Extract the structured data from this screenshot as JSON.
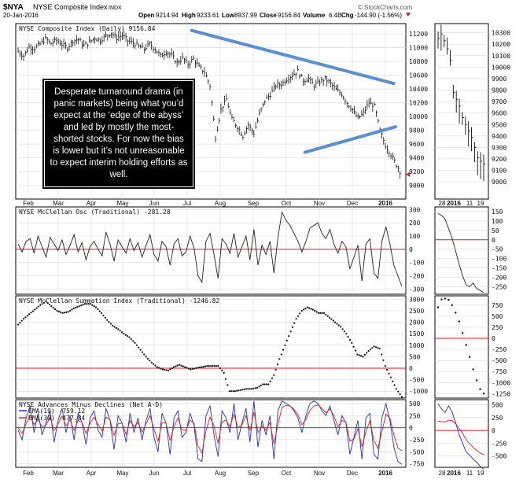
{
  "header": {
    "symbol": "$NYA",
    "name": "NYSE Composite Index",
    "exchange": "INDX",
    "date": "20-Jan-2016",
    "open_label": "Open",
    "open": "9214.94",
    "high_label": "High",
    "high": "9233.61",
    "low_label": "Low",
    "low": "8937.99",
    "close_label": "Close",
    "close": "9156.84",
    "volume_label": "Volume",
    "volume": "6.4B",
    "chg_label": "Chg",
    "chg": "-144.90 (-1.56%)",
    "watermark": "© StockCharts.com"
  },
  "annotation": "Desperate turnaround drama (in panic markets) being what you’d expect at the ‘edge of the abyss’ and led by mostly the most-shorted stocks. For now the bias is lower but it’s not unreasonable to expect interim holding efforts as well.",
  "colors": {
    "price": "#111111",
    "trendline": "#5b8fd1",
    "zero_line": "#d0202a",
    "ad_line": "#2a2fb8",
    "ema39": "#e0201a",
    "grid": "#d9d9d9"
  },
  "chart_data": [
    {
      "type": "bar",
      "panel": "price",
      "title": "NYSE Composite Index (Daily) 9156.84",
      "x_labels": [
        "Feb",
        "Mar",
        "Apr",
        "May",
        "Jun",
        "Jul",
        "Aug",
        "Sep",
        "Oct",
        "Nov",
        "Dec",
        "2016"
      ],
      "ylim": [
        8800,
        11350
      ],
      "y_ticks": [
        9000,
        9200,
        9400,
        9600,
        9800,
        10000,
        10200,
        10400,
        10600,
        10800,
        11000,
        11200
      ],
      "zoom_x_labels": [
        "28",
        "2016",
        "11",
        "19"
      ],
      "zoom_ylim": [
        8850,
        10380
      ],
      "zoom_y_ticks": [
        9000,
        9100,
        9200,
        9300,
        9400,
        9500,
        9600,
        9700,
        9800,
        9900,
        10000,
        10100,
        10200,
        10300
      ],
      "last": 9156.84,
      "points": [
        [
          0,
          10950
        ],
        [
          6,
          10880
        ],
        [
          12,
          11010
        ],
        [
          18,
          10990
        ],
        [
          24,
          11050
        ],
        [
          30,
          11130
        ],
        [
          36,
          11060
        ],
        [
          42,
          11110
        ],
        [
          48,
          11050
        ],
        [
          54,
          11000
        ],
        [
          60,
          11100
        ],
        [
          66,
          11120
        ],
        [
          72,
          11030
        ],
        [
          78,
          11080
        ],
        [
          84,
          11140
        ],
        [
          90,
          11110
        ],
        [
          96,
          11170
        ],
        [
          102,
          11210
        ],
        [
          108,
          11140
        ],
        [
          114,
          11180
        ],
        [
          120,
          11100
        ],
        [
          126,
          11070
        ],
        [
          132,
          11020
        ],
        [
          138,
          10980
        ],
        [
          144,
          11050
        ],
        [
          150,
          10980
        ],
        [
          156,
          10880
        ],
        [
          162,
          10940
        ],
        [
          168,
          10890
        ],
        [
          174,
          10780
        ],
        [
          180,
          10850
        ],
        [
          186,
          10760
        ],
        [
          192,
          10840
        ],
        [
          198,
          10720
        ],
        [
          204,
          10650
        ],
        [
          210,
          10450
        ],
        [
          216,
          9700
        ],
        [
          222,
          10100
        ],
        [
          228,
          10250
        ],
        [
          234,
          9960
        ],
        [
          240,
          9850
        ],
        [
          246,
          9720
        ],
        [
          252,
          9880
        ],
        [
          258,
          9760
        ],
        [
          264,
          10030
        ],
        [
          270,
          10230
        ],
        [
          276,
          10320
        ],
        [
          282,
          10450
        ],
        [
          288,
          10470
        ],
        [
          294,
          10540
        ],
        [
          300,
          10600
        ],
        [
          306,
          10660
        ],
        [
          312,
          10520
        ],
        [
          318,
          10550
        ],
        [
          324,
          10450
        ],
        [
          330,
          10500
        ],
        [
          336,
          10550
        ],
        [
          342,
          10480
        ],
        [
          348,
          10390
        ],
        [
          354,
          10330
        ],
        [
          360,
          10200
        ],
        [
          366,
          10100
        ],
        [
          372,
          9970
        ],
        [
          378,
          10050
        ],
        [
          384,
          10200
        ],
        [
          390,
          10150
        ],
        [
          396,
          9800
        ],
        [
          402,
          9580
        ],
        [
          408,
          9450
        ],
        [
          414,
          9300
        ],
        [
          420,
          9157
        ]
      ],
      "trendlines": [
        {
          "name": "",
          "from": [
            190,
            11250
          ],
          "to": [
            411,
            10480
          ]
        },
        {
          "name": "",
          "from": [
            314,
            9480
          ],
          "to": [
            413,
            9850
          ]
        }
      ],
      "zoom_points": [
        [
          0,
          10250
        ],
        [
          3,
          10290
        ],
        [
          6,
          10230
        ],
        [
          9,
          10160
        ],
        [
          12,
          10060
        ],
        [
          15,
          9780
        ],
        [
          18,
          9720
        ],
        [
          21,
          9660
        ],
        [
          24,
          9560
        ],
        [
          27,
          9500
        ],
        [
          30,
          9440
        ],
        [
          33,
          9390
        ],
        [
          36,
          9300
        ],
        [
          39,
          9210
        ],
        [
          42,
          9180
        ],
        [
          45,
          9157
        ]
      ]
    },
    {
      "type": "line",
      "panel": "mcclellan-osc",
      "title": "NYSE McClellan Osc (Traditional) -281.28",
      "ylim": [
        -340,
        320
      ],
      "y_ticks": [
        300,
        200,
        100,
        0,
        -100,
        -200,
        -300
      ],
      "zoom_ylim": [
        -290,
        175
      ],
      "zoom_y_ticks": [
        150,
        100,
        50,
        0,
        -50,
        -100,
        -150,
        -200,
        -250
      ],
      "last": -281.28,
      "values": [
        40,
        -20,
        60,
        80,
        -30,
        100,
        20,
        -60,
        90,
        40,
        -10,
        70,
        -40,
        30,
        110,
        -20,
        50,
        -80,
        20,
        60,
        0,
        -50,
        130,
        40,
        -90,
        70,
        20,
        -30,
        80,
        -10,
        50,
        -60,
        30,
        110,
        -40,
        -90,
        60,
        20,
        -120,
        40,
        80,
        -50,
        -20,
        100,
        10,
        -200,
        -250,
        60,
        120,
        -40,
        -220,
        80,
        40,
        -30,
        120,
        -60,
        20,
        100,
        -80,
        150,
        -120,
        30,
        -40,
        60,
        -180,
        90,
        280,
        220,
        180,
        120,
        60,
        -20,
        60,
        160,
        180,
        200,
        120,
        80,
        150,
        40,
        -30,
        60,
        20,
        -150,
        -60,
        30,
        -240,
        40,
        80,
        -180,
        -220,
        60,
        170,
        40,
        -120,
        -200,
        -281
      ],
      "zoom_values": [
        140,
        130,
        110,
        60,
        10,
        -60,
        -130,
        -190,
        -240,
        -250,
        -230,
        -260,
        -270,
        -281
      ]
    },
    {
      "type": "scatter",
      "panel": "mcclellan-summation",
      "title": "NYSE McClellan Summation Index (Traditional) -1246.82",
      "ylim": [
        -1300,
        3150
      ],
      "y_ticks": [
        3000,
        2500,
        2000,
        1500,
        1000,
        500,
        0,
        -500,
        -1000
      ],
      "zoom_ylim": [
        -1350,
        960
      ],
      "zoom_y_ticks": [
        750,
        500,
        250,
        0,
        -250,
        -500,
        -750,
        -1000,
        -1250
      ],
      "last": -1246.82,
      "values": [
        1900,
        2150,
        2350,
        2550,
        2750,
        2900,
        2700,
        2500,
        2400,
        2450,
        2600,
        2700,
        2800,
        2800,
        2650,
        2400,
        2100,
        1850,
        1700,
        1500,
        1350,
        1100,
        800,
        500,
        250,
        50,
        -50,
        -100,
        50,
        150,
        50,
        -50,
        0,
        50,
        100,
        100,
        100,
        -200,
        -1000,
        -1000,
        -950,
        -900,
        -900,
        -850,
        -700,
        -700,
        -300,
        400,
        1000,
        1600,
        2150,
        2500,
        2650,
        2550,
        2400,
        2400,
        2200,
        2000,
        1800,
        1500,
        1100,
        600,
        500,
        750,
        950,
        850,
        100,
        -400,
        -900,
        -1247
      ],
      "zoom_values": [
        700,
        880,
        900,
        870,
        750,
        580,
        380,
        120,
        -150,
        -420,
        -700,
        -950,
        -1150,
        -1247
      ]
    },
    {
      "type": "line",
      "panel": "advances-minus-declines",
      "title": "NYSE Advances Minus Declines (Net A-D)",
      "ylim": [
        -820,
        580
      ],
      "y_ticks": [
        500,
        250,
        0,
        -250,
        -500,
        -750
      ],
      "zoom_ylim": [
        -720,
        600
      ],
      "zoom_y_ticks": [
        500,
        250,
        0,
        -250,
        -500
      ],
      "series": [
        {
          "name": "EMA(19) -759.12",
          "values": [
            -50,
            -250,
            200,
            450,
            -100,
            300,
            -150,
            100,
            350,
            -300,
            150,
            400,
            -100,
            250,
            -250,
            300,
            100,
            -350,
            200,
            350,
            -50,
            -200,
            400,
            150,
            -450,
            250,
            100,
            -300,
            300,
            -100,
            200,
            -250,
            150,
            400,
            -200,
            -500,
            300,
            100,
            -550,
            200,
            350,
            -200,
            -100,
            300,
            50,
            -650,
            -700,
            250,
            450,
            -150,
            -600,
            350,
            200,
            -100,
            500,
            -250,
            100,
            400,
            -300,
            550,
            -400,
            150,
            -150,
            250,
            -650,
            350,
            550,
            500,
            450,
            350,
            200,
            -100,
            250,
            500,
            550,
            500,
            350,
            250,
            450,
            150,
            -150,
            250,
            100,
            -550,
            -200,
            150,
            -650,
            200,
            300,
            -550,
            -650,
            200,
            500,
            150,
            -400,
            -700,
            -759
          ]
        },
        {
          "name": "EMA(39) -477.84",
          "values": [
            0,
            -120,
            80,
            260,
            60,
            170,
            20,
            60,
            210,
            -60,
            80,
            240,
            40,
            160,
            -60,
            150,
            110,
            -120,
            90,
            220,
            60,
            -70,
            220,
            160,
            -160,
            80,
            90,
            -140,
            150,
            20,
            110,
            -90,
            80,
            250,
            -30,
            -280,
            100,
            100,
            -270,
            30,
            200,
            -40,
            -60,
            160,
            90,
            -380,
            -520,
            -60,
            220,
            40,
            -320,
            120,
            160,
            20,
            280,
            0,
            60,
            250,
            -60,
            320,
            -100,
            40,
            -50,
            110,
            -330,
            60,
            420,
            460,
            450,
            380,
            270,
            60,
            170,
            360,
            450,
            470,
            400,
            310,
            390,
            240,
            20,
            150,
            120,
            -280,
            -230,
            -20,
            -390,
            -80,
            140,
            -260,
            -430,
            -80,
            280,
            200,
            -150,
            -420,
            -478
          ]
        }
      ],
      "zoom_series": [
        {
          "name": "",
          "values": [
            520,
            420,
            350,
            480,
            360,
            150,
            -80,
            -250,
            -420,
            -480,
            -560,
            -620,
            -700,
            -759
          ]
        },
        {
          "name": "",
          "values": [
            180,
            170,
            165,
            200,
            190,
            130,
            40,
            -60,
            -180,
            -260,
            -330,
            -390,
            -440,
            -478
          ]
        }
      ]
    }
  ]
}
